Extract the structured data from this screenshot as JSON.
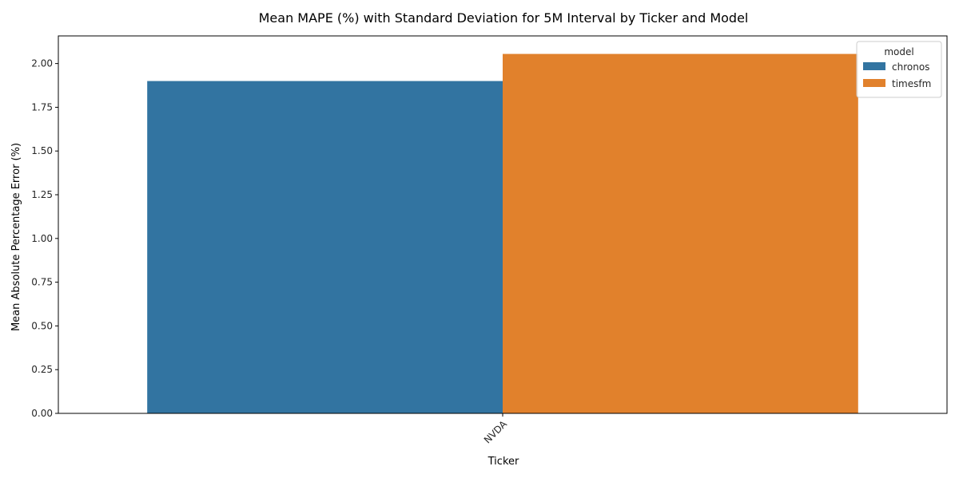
{
  "chart_data": {
    "type": "bar",
    "title": "Mean MAPE (%) with Standard Deviation for 5M Interval by Ticker and Model",
    "xlabel": "Ticker",
    "ylabel": "Mean Absolute Percentage Error (%)",
    "categories": [
      "NVDA"
    ],
    "series": [
      {
        "name": "chronos",
        "values": [
          1.9
        ],
        "color": "#3274a1"
      },
      {
        "name": "timesfm",
        "values": [
          2.055
        ],
        "color": "#e1812c"
      }
    ],
    "ylim": [
      0,
      2.158
    ],
    "yticks": [
      0.0,
      0.25,
      0.5,
      0.75,
      1.0,
      1.25,
      1.5,
      1.75,
      2.0
    ],
    "ytick_labels": [
      "0.00",
      "0.25",
      "0.50",
      "0.75",
      "1.00",
      "1.25",
      "1.50",
      "1.75",
      "2.00"
    ],
    "legend": {
      "title": "model",
      "position": "top-right"
    },
    "grid": false
  }
}
